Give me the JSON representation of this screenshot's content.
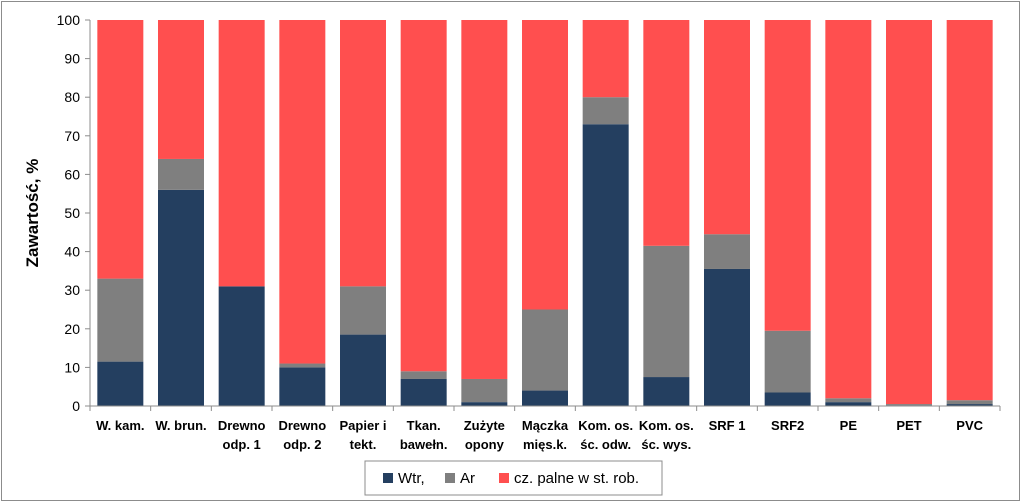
{
  "chart_data": {
    "type": "bar",
    "stacked": true,
    "percent_stacked": true,
    "title": "",
    "xlabel": "",
    "ylabel": "Zawartość, %",
    "ylim": [
      0,
      100
    ],
    "yticks": [
      0,
      10,
      20,
      30,
      40,
      50,
      60,
      70,
      80,
      90,
      100
    ],
    "grid": false,
    "legend_position": "bottom",
    "categories": [
      [
        "W. kam."
      ],
      [
        "W. brun."
      ],
      [
        "Drewno",
        "odp. 1"
      ],
      [
        "Drewno",
        "odp. 2"
      ],
      [
        "Papier i",
        "tekt."
      ],
      [
        "Tkan.",
        "bawełn."
      ],
      [
        "Zużyte",
        "opony"
      ],
      [
        "Mączka",
        "mięs.k."
      ],
      [
        "Kom. os.",
        "śc. odw."
      ],
      [
        "Kom. os.",
        "śc. wys."
      ],
      [
        "SRF 1"
      ],
      [
        "SRF2"
      ],
      [
        "PE"
      ],
      [
        "PET"
      ],
      [
        "PVC"
      ]
    ],
    "series": [
      {
        "name": "Wtr,",
        "color": "#243f60",
        "values": [
          11.5,
          56,
          31,
          10,
          18.5,
          7,
          1,
          4,
          73,
          7.5,
          35.5,
          3.5,
          1,
          0.2,
          0.5
        ]
      },
      {
        "name": "Ar",
        "color": "#7f7f7f",
        "values": [
          21.5,
          8,
          0,
          1,
          12.5,
          2,
          6,
          21,
          7,
          34,
          9,
          16,
          1,
          0.3,
          1
        ]
      },
      {
        "name": "cz. palne w st. rob.",
        "color": "#ff4f4f",
        "values": [
          67,
          36,
          69,
          89,
          69,
          91,
          93,
          75,
          20,
          58.5,
          55.5,
          80.5,
          98,
          99.5,
          98.5
        ]
      }
    ]
  }
}
